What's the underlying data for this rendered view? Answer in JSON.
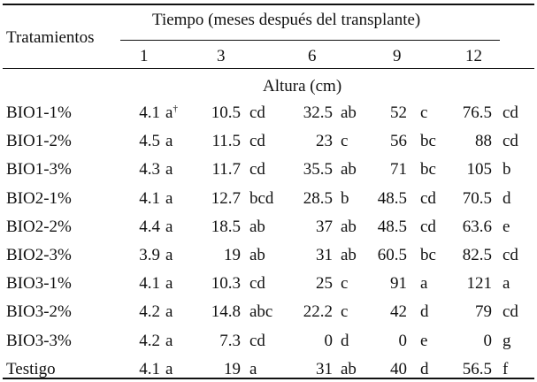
{
  "table": {
    "col_header_treatments": "Tratamientos",
    "col_header_time": "Tiempo (meses después del transplante)",
    "months": [
      "1",
      "3",
      "6",
      "9",
      "12"
    ],
    "subheader": "Altura (cm)",
    "footnote_marker": "†",
    "rows": [
      {
        "name": "BIO1-1%",
        "cells": [
          {
            "v": "4.1",
            "l": "a"
          },
          {
            "v": "10.5",
            "l": "cd"
          },
          {
            "v": "32.5",
            "l": "ab"
          },
          {
            "v": "52",
            "l": "c"
          },
          {
            "v": "76.5",
            "l": "cd"
          }
        ]
      },
      {
        "name": "BIO1-2%",
        "cells": [
          {
            "v": "4.5",
            "l": "a"
          },
          {
            "v": "11.5",
            "l": "cd"
          },
          {
            "v": "23",
            "l": "c"
          },
          {
            "v": "56",
            "l": "bc"
          },
          {
            "v": "88",
            "l": "cd"
          }
        ]
      },
      {
        "name": "BIO1-3%",
        "cells": [
          {
            "v": "4.3",
            "l": "a"
          },
          {
            "v": "11.7",
            "l": "cd"
          },
          {
            "v": "35.5",
            "l": "ab"
          },
          {
            "v": "71",
            "l": "bc"
          },
          {
            "v": "105",
            "l": "b"
          }
        ]
      },
      {
        "name": "BIO2-1%",
        "cells": [
          {
            "v": "4.1",
            "l": "a"
          },
          {
            "v": "12.7",
            "l": "bcd"
          },
          {
            "v": "28.5",
            "l": "b"
          },
          {
            "v": "48.5",
            "l": "cd"
          },
          {
            "v": "70.5",
            "l": "d"
          }
        ]
      },
      {
        "name": "BIO2-2%",
        "cells": [
          {
            "v": "4.4",
            "l": "a"
          },
          {
            "v": "18.5",
            "l": "ab"
          },
          {
            "v": "37",
            "l": "ab"
          },
          {
            "v": "48.5",
            "l": "cd"
          },
          {
            "v": "63.6",
            "l": "e"
          }
        ]
      },
      {
        "name": "BIO2-3%",
        "cells": [
          {
            "v": "3.9",
            "l": "a"
          },
          {
            "v": "19",
            "l": "ab"
          },
          {
            "v": "31",
            "l": "ab"
          },
          {
            "v": "60.5",
            "l": "bc"
          },
          {
            "v": "82.5",
            "l": "cd"
          }
        ]
      },
      {
        "name": "BIO3-1%",
        "cells": [
          {
            "v": "4.1",
            "l": "a"
          },
          {
            "v": "10.3",
            "l": "cd"
          },
          {
            "v": "25",
            "l": "c"
          },
          {
            "v": "91",
            "l": "a"
          },
          {
            "v": "121",
            "l": "a"
          }
        ]
      },
      {
        "name": "BIO3-2%",
        "cells": [
          {
            "v": "4.2",
            "l": "a"
          },
          {
            "v": "14.8",
            "l": "abc"
          },
          {
            "v": "22.2",
            "l": "c"
          },
          {
            "v": "42",
            "l": "d"
          },
          {
            "v": "79",
            "l": "cd"
          }
        ]
      },
      {
        "name": "BIO3-3%",
        "cells": [
          {
            "v": "4.2",
            "l": "a"
          },
          {
            "v": "7.3",
            "l": "cd"
          },
          {
            "v": "0",
            "l": "d"
          },
          {
            "v": "0",
            "l": "e"
          },
          {
            "v": "0",
            "l": "g"
          }
        ]
      },
      {
        "name": "Testigo",
        "cells": [
          {
            "v": "4.1",
            "l": "a"
          },
          {
            "v": "19",
            "l": "a"
          },
          {
            "v": "31",
            "l": "ab"
          },
          {
            "v": "40",
            "l": "d"
          },
          {
            "v": "56.5",
            "l": "f"
          }
        ]
      }
    ]
  }
}
